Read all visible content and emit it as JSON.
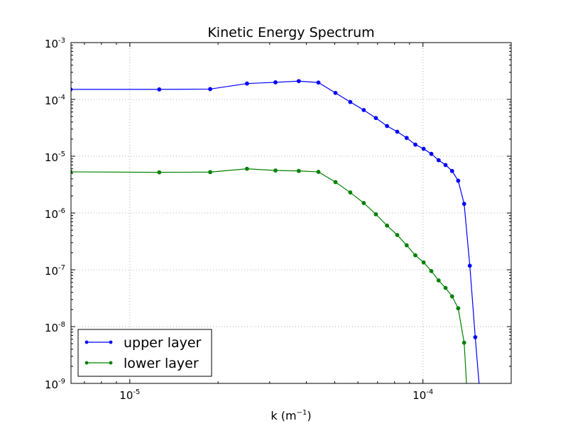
{
  "chart_data": {
    "type": "line",
    "title": "Kinetic Energy Spectrum",
    "xlabel_base": "k (m",
    "xlabel_exp": "−1",
    "xlabel_close": ")",
    "x_scale": "log",
    "y_scale": "log",
    "xlim": [
      6.3e-06,
      0.0002
    ],
    "ylim": [
      1e-09,
      0.001
    ],
    "grid": true,
    "legend_position": "lower-left",
    "x_ticks": [
      {
        "value": 1e-05,
        "base": "10",
        "exp": "-5"
      },
      {
        "value": 0.0001,
        "base": "10",
        "exp": "-4"
      }
    ],
    "y_ticks": [
      {
        "value": 0.001,
        "base": "10",
        "exp": "-3"
      },
      {
        "value": 0.0001,
        "base": "10",
        "exp": "-4"
      },
      {
        "value": 1e-05,
        "base": "10",
        "exp": "-5"
      },
      {
        "value": 1e-06,
        "base": "10",
        "exp": "-6"
      },
      {
        "value": 1e-07,
        "base": "10",
        "exp": "-7"
      },
      {
        "value": 1e-08,
        "base": "10",
        "exp": "-8"
      },
      {
        "value": 1e-09,
        "base": "10",
        "exp": "-9"
      }
    ],
    "series": [
      {
        "name": "upper layer",
        "color": "#0000ff",
        "points": [
          [
            6.28e-06,
            0.00015
          ],
          [
            1.26e-05,
            0.00015
          ],
          [
            1.88e-05,
            0.000152
          ],
          [
            2.51e-05,
            0.00019
          ],
          [
            3.14e-05,
            0.0002
          ],
          [
            3.77e-05,
            0.00021
          ],
          [
            4.4e-05,
            0.000198
          ],
          [
            5.03e-05,
            0.00013
          ],
          [
            5.65e-05,
            9e-05
          ],
          [
            6.28e-05,
            6.5e-05
          ],
          [
            6.91e-05,
            4.7e-05
          ],
          [
            7.54e-05,
            3.4e-05
          ],
          [
            8.17e-05,
            2.7e-05
          ],
          [
            8.8e-05,
            2.1e-05
          ],
          [
            9.42e-05,
            1.6e-05
          ],
          [
            0.0001005,
            1.35e-05
          ],
          [
            0.0001068,
            1.1e-05
          ],
          [
            0.0001131,
            8.5e-06
          ],
          [
            0.0001194,
            7e-06
          ],
          [
            0.0001257,
            5.5e-06
          ],
          [
            0.0001319,
            3.7e-06
          ],
          [
            0.0001382,
            1.45e-06
          ],
          [
            0.0001445,
            1.18e-07
          ],
          [
            0.0001508,
            6.5e-09
          ],
          [
            0.0001571,
            5e-10
          ]
        ]
      },
      {
        "name": "lower layer",
        "color": "#008000",
        "points": [
          [
            6.28e-06,
            5.3e-06
          ],
          [
            1.26e-05,
            5.2e-06
          ],
          [
            1.88e-05,
            5.25e-06
          ],
          [
            2.51e-05,
            6e-06
          ],
          [
            3.14e-05,
            5.6e-06
          ],
          [
            3.77e-05,
            5.5e-06
          ],
          [
            4.4e-05,
            5.3e-06
          ],
          [
            5.03e-05,
            3.5e-06
          ],
          [
            5.65e-05,
            2.3e-06
          ],
          [
            6.28e-05,
            1.5e-06
          ],
          [
            6.91e-05,
            9.5e-07
          ],
          [
            7.54e-05,
            6e-07
          ],
          [
            8.17e-05,
            4.1e-07
          ],
          [
            8.8e-05,
            2.7e-07
          ],
          [
            9.42e-05,
            1.8e-07
          ],
          [
            0.0001005,
            1.35e-07
          ],
          [
            0.0001068,
            9.5e-08
          ],
          [
            0.0001131,
            6.5e-08
          ],
          [
            0.0001194,
            4.8e-08
          ],
          [
            0.0001257,
            3.4e-08
          ],
          [
            0.0001319,
            2.1e-08
          ],
          [
            0.0001382,
            5.2e-09
          ],
          [
            0.0001445,
            1e-10
          ]
        ]
      }
    ]
  }
}
